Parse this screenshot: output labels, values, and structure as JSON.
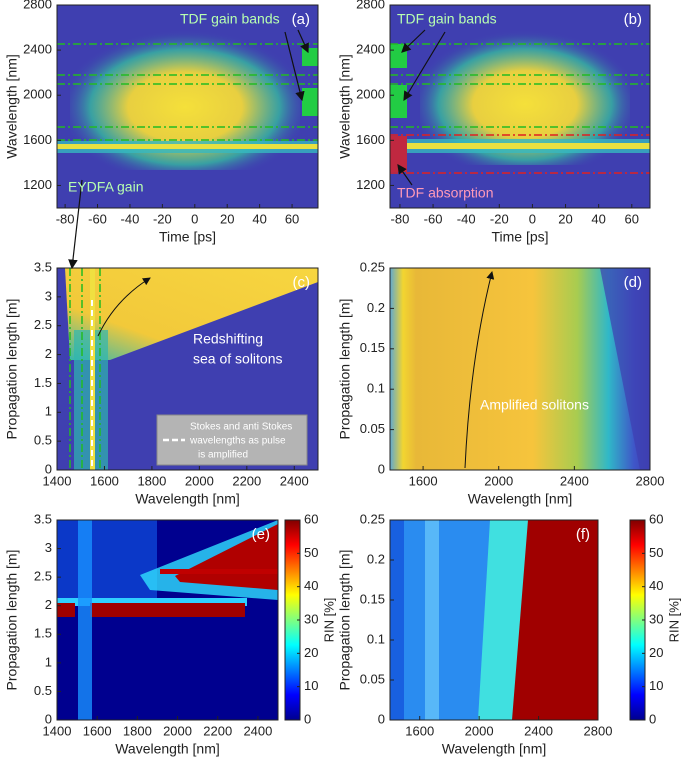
{
  "chart_data": [
    {
      "type": "heatmap",
      "panel_label": "(a)",
      "xlabel": "Time [ps]",
      "ylabel": "Wavelength [nm]",
      "xlim": [
        -85,
        76
      ],
      "ylim": [
        1000,
        2800
      ],
      "xticks": [
        -80,
        -60,
        -40,
        -20,
        0,
        20,
        40,
        60
      ],
      "yticks": [
        1200,
        1600,
        2000,
        2400,
        2800
      ],
      "annotations": [
        "TDF gain bands",
        "EYDFA gain"
      ]
    },
    {
      "type": "heatmap",
      "panel_label": "(b)",
      "xlabel": "Time [ps]",
      "ylabel": "Wavelength [nm]",
      "xlim": [
        -86,
        71
      ],
      "ylim": [
        1000,
        2800
      ],
      "xticks": [
        -80,
        -60,
        -40,
        -20,
        0,
        20,
        40,
        60
      ],
      "yticks": [
        1200,
        1600,
        2000,
        2400,
        2800
      ],
      "annotations": [
        "TDF gain bands",
        "TDF absorption"
      ]
    },
    {
      "type": "heatmap",
      "panel_label": "(c)",
      "xlabel": "Wavelength [nm]",
      "ylabel": "Propagation length [m]",
      "xlim": [
        1400,
        2500
      ],
      "ylim": [
        0,
        3.5
      ],
      "xticks": [
        1400,
        1600,
        1800,
        2000,
        2200,
        2400
      ],
      "yticks": [
        0,
        0.5,
        1,
        1.5,
        2,
        2.5,
        3,
        3.5
      ],
      "annotations": [
        "Redshifting",
        "sea of solitons",
        "Stokes and anti Stokes",
        "wavelengths as pulse",
        "is amplified"
      ]
    },
    {
      "type": "heatmap",
      "panel_label": "(d)",
      "xlabel": "Wavelength [nm]",
      "ylabel": "Propagation length [m]",
      "xlim": [
        1425,
        2800
      ],
      "ylim": [
        0,
        0.25
      ],
      "xticks": [
        1600,
        2000,
        2400,
        2800
      ],
      "yticks": [
        0,
        0.05,
        0.1,
        0.15,
        0.2,
        0.25
      ],
      "annotations": [
        "Amplified solitons"
      ]
    },
    {
      "type": "heatmap",
      "panel_label": "(e)",
      "xlabel": "Wavelength [nm]",
      "ylabel": "Propagation length [m]",
      "xlim": [
        1400,
        2500
      ],
      "ylim": [
        0,
        3.5
      ],
      "xticks": [
        1400,
        1600,
        1800,
        2000,
        2200,
        2400
      ],
      "yticks": [
        0,
        0.5,
        1,
        1.5,
        2,
        2.5,
        3,
        3.5
      ],
      "colorbar": {
        "label": "RIN [%]",
        "lim": [
          0,
          60
        ],
        "ticks": [
          0,
          10,
          20,
          30,
          40,
          50,
          60
        ]
      }
    },
    {
      "type": "heatmap",
      "panel_label": "(f)",
      "xlabel": "Wavelength [nm]",
      "ylabel": "Propagation length [m]",
      "xlim": [
        1400,
        2800
      ],
      "ylim": [
        0,
        0.25
      ],
      "xticks": [
        1600,
        2000,
        2400,
        2800
      ],
      "yticks": [
        0,
        0.05,
        0.1,
        0.15,
        0.2,
        0.25
      ],
      "colorbar": {
        "label": "RIN [%]",
        "lim": [
          0,
          60
        ],
        "ticks": [
          0,
          10,
          20,
          30,
          40,
          50,
          60
        ]
      }
    }
  ]
}
